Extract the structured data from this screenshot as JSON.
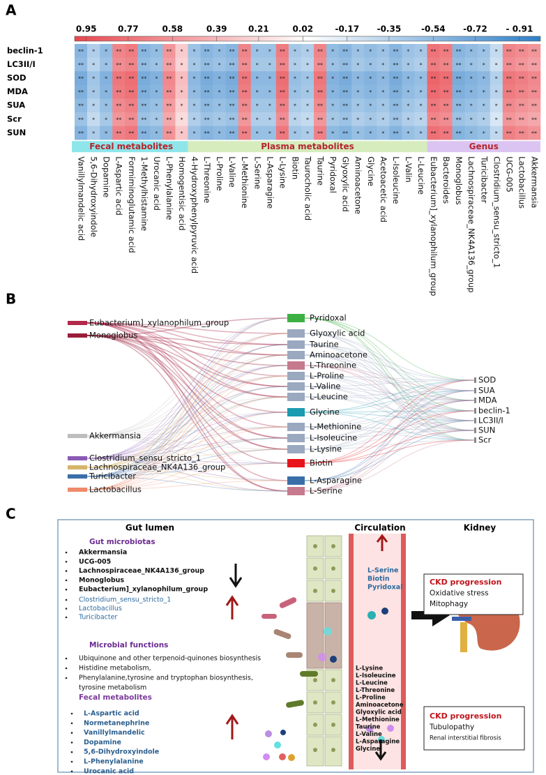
{
  "panel_labels": [
    "A",
    "B",
    "C"
  ],
  "chart_data": {
    "type": "heatmap",
    "rows": [
      "beclin-1",
      "LC3II/I",
      "SOD",
      "MDA",
      "SUA",
      "Scr",
      "SUN"
    ],
    "groups": [
      {
        "name": "Fecal metabolites",
        "color": "#8fe6ea",
        "columns": [
          "Vanillylmandelic acid",
          "5,6-Dihydroxyindole",
          "Dopamine",
          "L-Aspartic acid",
          "Formiminoglutamic acid",
          "1-Methylhistamine",
          "Urocanic acid",
          "L-Phenylalanine",
          "Homogentisic acid"
        ]
      },
      {
        "name": "Plasma metabolites",
        "color": "#d6ecbd",
        "columns": [
          "4-Hydroxyphenylpyruvic acid",
          "L-Threonine",
          "L-Proline",
          "L-Valine",
          "L-Methionine",
          "L-Serine",
          "L-Asparagine",
          "L-Lysine",
          "Biotin",
          "Taurocholic acid",
          "Taurine",
          "Pyridoxal",
          "Glyoxylic acid",
          "Aminoacetone",
          "Glycine",
          "Acetoacetic acid",
          "L-Isoleucine",
          "L-Valin",
          "L-Leucine"
        ]
      },
      {
        "name": "Genus",
        "color": "#dcc4f2",
        "columns": [
          "Eubacterium]_xylanophilum_group",
          "Bacteroides",
          "Monoglobus",
          "Lachnospiraceae_NK4A136_group",
          "Turicibacter",
          "Clostridium_sensu_stricto_1",
          "UCG-005",
          "Lactobacillus",
          "Akkermansia"
        ]
      }
    ],
    "values": [
      [
        -0.6,
        -0.4,
        -0.55,
        0.7,
        0.75,
        -0.6,
        -0.55,
        0.6,
        0.3,
        -0.5,
        -0.6,
        -0.55,
        -0.6,
        0.7,
        -0.5,
        -0.5,
        0.75,
        -0.45,
        -0.4,
        0.7,
        -0.55,
        -0.6,
        -0.5,
        -0.55,
        -0.5,
        -0.6,
        -0.5,
        -0.45,
        0.8,
        0.75,
        -0.6,
        -0.55,
        -0.5,
        -0.3,
        0.7,
        0.65,
        0.6
      ],
      [
        -0.55,
        -0.35,
        -0.5,
        0.65,
        0.7,
        -0.55,
        -0.5,
        0.55,
        0.25,
        -0.45,
        -0.55,
        -0.5,
        -0.55,
        0.65,
        -0.45,
        -0.45,
        0.7,
        -0.4,
        -0.35,
        0.65,
        -0.5,
        -0.55,
        -0.45,
        -0.5,
        -0.45,
        -0.55,
        -0.45,
        -0.4,
        0.75,
        0.7,
        -0.55,
        -0.5,
        -0.45,
        -0.25,
        0.65,
        0.6,
        0.55
      ],
      [
        -0.68,
        -0.48,
        -0.63,
        0.78,
        0.83,
        -0.68,
        -0.63,
        0.68,
        0.38,
        -0.58,
        -0.68,
        -0.63,
        -0.68,
        0.78,
        -0.58,
        -0.58,
        0.83,
        -0.53,
        -0.48,
        0.78,
        -0.63,
        -0.68,
        -0.58,
        -0.63,
        -0.58,
        -0.68,
        -0.58,
        -0.53,
        0.88,
        0.83,
        -0.68,
        -0.63,
        -0.58,
        -0.38,
        0.78,
        0.73,
        0.68
      ],
      [
        -0.65,
        -0.45,
        -0.6,
        0.75,
        0.8,
        -0.65,
        -0.6,
        0.65,
        0.35,
        -0.55,
        -0.65,
        -0.6,
        -0.65,
        0.75,
        -0.55,
        -0.55,
        0.8,
        -0.5,
        -0.45,
        0.75,
        -0.6,
        -0.65,
        -0.55,
        -0.6,
        -0.55,
        -0.65,
        -0.55,
        -0.5,
        0.85,
        0.8,
        -0.65,
        -0.6,
        -0.55,
        -0.35,
        0.75,
        0.7,
        0.65
      ],
      [
        -0.57,
        -0.37,
        -0.52,
        0.67,
        0.72,
        -0.57,
        -0.52,
        0.57,
        0.27,
        -0.47,
        -0.57,
        -0.52,
        -0.57,
        0.67,
        -0.47,
        -0.47,
        0.72,
        -0.42,
        -0.37,
        0.67,
        -0.52,
        -0.57,
        -0.47,
        -0.52,
        -0.47,
        -0.57,
        -0.47,
        -0.42,
        0.77,
        0.72,
        -0.57,
        -0.52,
        -0.47,
        -0.27,
        0.67,
        0.62,
        0.57
      ],
      [
        -0.5,
        -0.3,
        -0.45,
        0.6,
        0.65,
        -0.5,
        -0.45,
        0.5,
        0.2,
        -0.4,
        -0.5,
        -0.45,
        -0.5,
        0.6,
        -0.4,
        -0.4,
        0.65,
        -0.35,
        -0.3,
        0.6,
        -0.45,
        -0.5,
        -0.4,
        -0.45,
        -0.4,
        -0.5,
        -0.4,
        -0.35,
        0.7,
        0.65,
        -0.5,
        -0.45,
        -0.4,
        -0.2,
        0.6,
        0.55,
        0.5
      ],
      [
        -0.62,
        -0.42,
        -0.57,
        0.72,
        0.77,
        -0.62,
        -0.57,
        0.62,
        0.32,
        -0.52,
        -0.62,
        -0.57,
        -0.62,
        0.72,
        -0.52,
        -0.52,
        0.77,
        -0.47,
        -0.42,
        0.72,
        -0.57,
        -0.62,
        -0.52,
        -0.57,
        -0.52,
        -0.62,
        -0.52,
        -0.47,
        0.82,
        0.77,
        -0.62,
        -0.57,
        -0.52,
        -0.32,
        0.72,
        0.67,
        0.62
      ]
    ],
    "column_stars": [
      "**",
      "*",
      "*",
      "**",
      "**",
      "**",
      "*",
      "**",
      "*",
      "*",
      "**",
      "*",
      "**",
      "**",
      "*",
      "*",
      "**",
      "*",
      "*",
      "**",
      "*",
      "**",
      "*",
      "*",
      "*",
      "**",
      "*",
      "*",
      "**",
      "**",
      "**",
      "*",
      "*",
      "*",
      "**",
      "**",
      "**"
    ],
    "colorbar": {
      "lim": [
        1,
        -1
      ],
      "colors": [
        "#e8474e",
        "#ffffff",
        "#2f7fc8"
      ],
      "ticks": [
        0.95,
        0.77,
        0.58,
        0.39,
        0.21,
        0.02,
        -0.17,
        -0.35,
        -0.54,
        -0.72,
        {
          "value": -0.91,
          "label": "- 0.91"
        }
      ]
    }
  },
  "panel_b": {
    "left_nodes": [
      "Eubacterium]_xylanophilum_group",
      "Monoglobus",
      "Akkermansia",
      "Clostridium_sensu_stricto_1",
      "Lachnospiraceae_NK4A136_group",
      "Turicibacter",
      "Lactobacillus"
    ],
    "left_colors": [
      "#b2294a",
      "#9a1c3a",
      "#bdbdbd",
      "#8a5bb5",
      "#d6b46a",
      "#3a6ea8",
      "#f08a6a"
    ],
    "middle_nodes": [
      "Pyridoxal",
      "Glyoxylic acid",
      "Taurine",
      "Aminoacetone",
      "L-Threonine",
      "L-Proline",
      "L-Valine",
      "L-Leucine",
      "Glycine",
      "L-Methionine",
      "L-Isoleucine",
      "L-Lysine",
      "Biotin",
      "L-Asparagine",
      "L-Serine"
    ],
    "middle_colors": [
      "#3cb043",
      "#9aa8c0",
      "#9aa8c0",
      "#9aa8c0",
      "#c77a8e",
      "#9aa8c0",
      "#9aa8c0",
      "#9aa8c0",
      "#1a9bb0",
      "#9aa8c0",
      "#9aa8c0",
      "#9aa8c0",
      "#e8141b",
      "#3a6ea8",
      "#c77a8e"
    ],
    "right_nodes": [
      "SOD",
      "SUA",
      "MDA",
      "beclin-1",
      "LC3II/I",
      "SUN",
      "Scr"
    ]
  },
  "panel_c": {
    "headers": [
      "Gut lumen",
      "Circulation",
      "Kidney"
    ],
    "microbiota_title": "Gut microbiotas",
    "decreased_genera": [
      "Akkermansia",
      "UCG-005",
      "Lachnospiraceae_NK4A136_group",
      "Monoglobus",
      "Eubacterium]_xylanophilum_group"
    ],
    "increased_genera": [
      "Clostridium_sensu_stricto_1",
      "Lactobacillus",
      "Turicibacter"
    ],
    "functions_title": "Microbial functions",
    "functions": [
      "Ubiquinone and other terpenoid-quinones biosynthesis",
      "Histidine metabolism,",
      "Phenylalanine,tyrosine and tryptophan biosynthesis,",
      "tyrosine metabolism"
    ],
    "fecal_title": "Fecal metabolites",
    "fecal": [
      "L-Aspartic acid",
      "Normetanephrine",
      "Vanillylmandelic",
      "Dopamine",
      "5,6-Dihydroxyindole",
      "L-Phenylalanine",
      "Urocanic acid"
    ],
    "plasma_increased": [
      "L-Serine",
      "Biotin",
      "Pyridoxal"
    ],
    "plasma_decreased": [
      "L-Lysine",
      "L-Isoleucine",
      "L-Leucine",
      "L-Threonine",
      "L-Proline",
      "Aminoacetone",
      "Glyoxylic acid",
      "L-Methionine",
      "Taurine",
      "L-Valine",
      "L-Asparagine",
      "Glycine"
    ],
    "kidney_box_1": [
      "CKD progression",
      "Oxidative stress",
      "Mitophagy"
    ],
    "kidney_box_2": [
      "CKD progression",
      "Tubulopathy",
      "Renal interstitial fibrosis"
    ]
  }
}
